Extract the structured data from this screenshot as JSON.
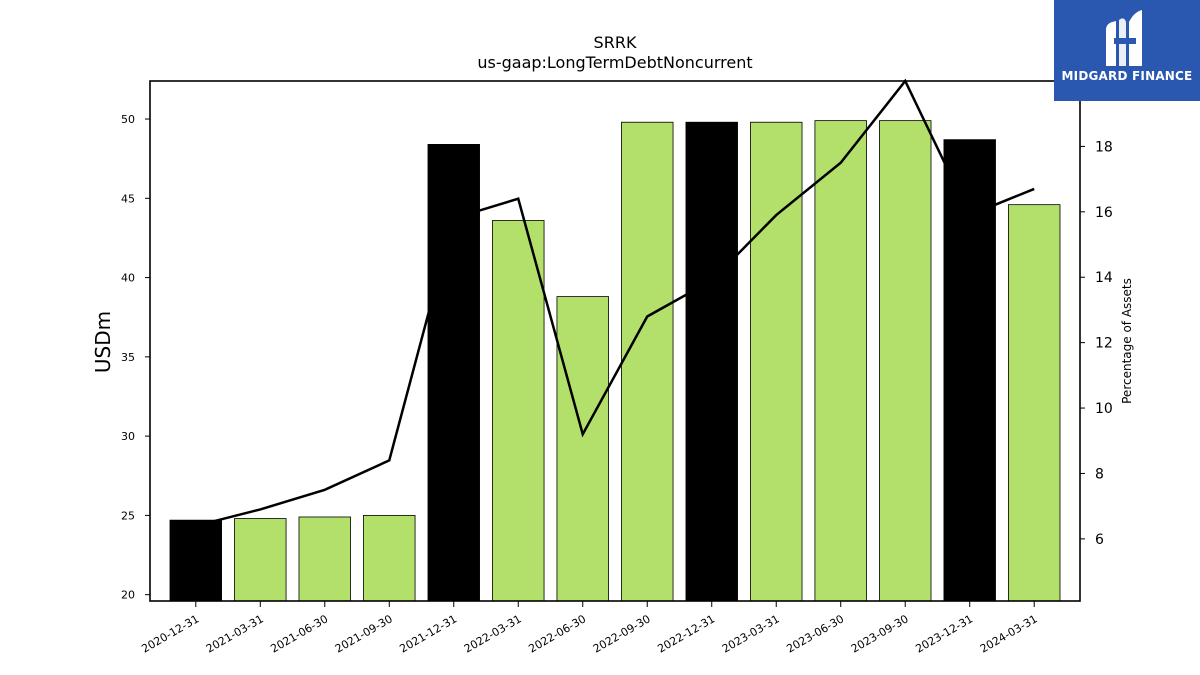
{
  "chart_data": {
    "type": "bar",
    "title": "SRRK",
    "subtitle": "us-gaap:LongTermDebtNoncurrent",
    "ylabel": "USDm",
    "y2label": "Percentage of Assets",
    "categories": [
      "2020-12-31",
      "2021-03-31",
      "2021-06-30",
      "2021-09-30",
      "2021-12-31",
      "2022-03-31",
      "2022-06-30",
      "2022-09-30",
      "2022-12-31",
      "2023-03-31",
      "2023-06-30",
      "2023-09-30",
      "2023-12-31",
      "2024-03-31"
    ],
    "series": [
      {
        "type": "bar",
        "values": [
          24.7,
          24.8,
          24.9,
          25.0,
          48.4,
          43.6,
          38.8,
          49.8,
          49.8,
          49.8,
          49.9,
          49.9,
          48.7,
          44.6
        ],
        "highlight": [
          true,
          false,
          false,
          false,
          true,
          false,
          false,
          false,
          true,
          false,
          false,
          false,
          true,
          false
        ]
      },
      {
        "type": "line",
        "axis": "right",
        "values": [
          6.4,
          6.9,
          7.5,
          8.4,
          15.8,
          16.4,
          9.2,
          12.8,
          13.9,
          15.9,
          17.5,
          20.0,
          15.9,
          16.7
        ]
      }
    ],
    "ylim": [
      19.6,
      52.4
    ],
    "yticks": [
      20,
      25,
      30,
      35,
      40,
      45,
      50
    ],
    "y2lim": [
      4.1,
      20.0
    ],
    "y2ticks": [
      6,
      8,
      10,
      12,
      14,
      16,
      18
    ],
    "colors": {
      "bar": "#b3df6b",
      "bar_highlight": "#000000",
      "line": "#000000"
    },
    "grid": false,
    "legend": "none"
  },
  "logo": {
    "text": "MIDGARD FINANCE",
    "background": "#2a57b0"
  }
}
